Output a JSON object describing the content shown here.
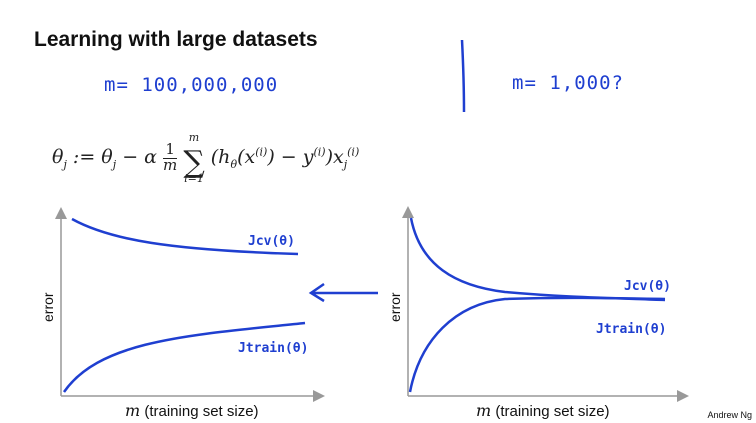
{
  "slide": {
    "title": "Learning with large datasets",
    "annotation_m_large": "m= 100,000,000",
    "annotation_m_small": "m= 1,000?",
    "author": "Andrew Ng"
  },
  "equation": {
    "lhs": "θ",
    "rhs_text": "(hθ(x(i)) − y(i))x"
  },
  "plots": {
    "left": {
      "ylabel": "error",
      "xlabel_var": "m",
      "xlabel_text": "(training set size)",
      "cv_label": "Jcv(θ)",
      "train_label": "Jtrain(θ)"
    },
    "right": {
      "ylabel": "error",
      "xlabel_var": "m",
      "xlabel_text": "(training set size)",
      "cv_label": "Jcv(θ)",
      "train_label": "Jtrain(θ)"
    }
  },
  "colors": {
    "ink": "#1f3fd0",
    "axis": "#999999"
  }
}
